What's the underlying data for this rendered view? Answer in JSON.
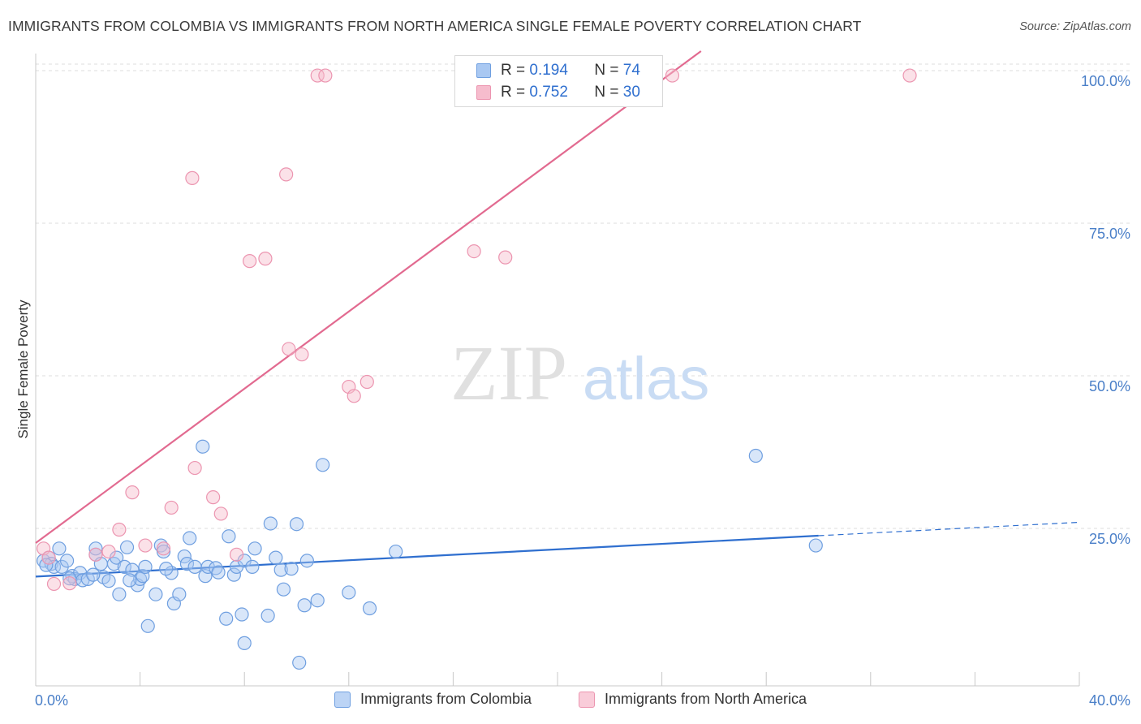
{
  "title": "IMMIGRANTS FROM COLOMBIA VS IMMIGRANTS FROM NORTH AMERICA SINGLE FEMALE POVERTY CORRELATION CHART",
  "source": "Source: ZipAtlas.com",
  "watermark": {
    "zip": "ZIP",
    "atlas": "atlas"
  },
  "legend": {
    "r_label": "R =",
    "n_label": "N =",
    "rows": [
      {
        "r": "0.194",
        "n": "74"
      },
      {
        "r": "0.752",
        "n": "30"
      }
    ]
  },
  "colors": {
    "colombia_fill": "#a9c8f2",
    "colombia_stroke": "#6f9fe0",
    "colombia_line": "#2f6fcf",
    "na_fill": "#f6bccd",
    "na_stroke": "#ec95b0",
    "na_line": "#e26a90",
    "tick_text": "#4a7fc8"
  },
  "chart_data": {
    "type": "scatter",
    "title": "IMMIGRANTS FROM COLOMBIA VS IMMIGRANTS FROM NORTH AMERICA SINGLE FEMALE POVERTY CORRELATION CHART",
    "xlabel": "",
    "ylabel": "Single Female Poverty",
    "xlim": [
      0,
      40
    ],
    "ylim": [
      0,
      102
    ],
    "x_tick_labels": [
      "0.0%",
      "40.0%"
    ],
    "y_ticks": [
      25,
      50,
      75,
      100
    ],
    "y_tick_labels": [
      "25.0%",
      "50.0%",
      "75.0%",
      "100.0%"
    ],
    "grid": true,
    "legend_position": "top-center",
    "series": [
      {
        "name": "Immigrants from Colombia",
        "r": 0.194,
        "n": 74,
        "trend": {
          "x0": 0,
          "y0": 17.9,
          "x1": 30,
          "y1": 24.6,
          "dashed_to_x": 40,
          "dashed_to_y": 26.8
        },
        "points": [
          [
            0.3,
            20.5
          ],
          [
            0.5,
            21
          ],
          [
            0.6,
            20
          ],
          [
            0.7,
            19.5
          ],
          [
            0.9,
            22.5
          ],
          [
            1.0,
            19.5
          ],
          [
            1.2,
            20.5
          ],
          [
            1.4,
            18
          ],
          [
            1.5,
            17.5
          ],
          [
            1.7,
            18.5
          ],
          [
            1.8,
            17.3
          ],
          [
            2.0,
            17.5
          ],
          [
            2.3,
            21.5
          ],
          [
            2.3,
            22.5
          ],
          [
            2.5,
            20
          ],
          [
            2.6,
            17.8
          ],
          [
            2.8,
            17.2
          ],
          [
            3.0,
            20
          ],
          [
            3.1,
            21
          ],
          [
            3.2,
            15
          ],
          [
            3.4,
            19.5
          ],
          [
            3.5,
            22.7
          ],
          [
            3.7,
            19
          ],
          [
            3.9,
            16.5
          ],
          [
            4.0,
            17.5
          ],
          [
            4.1,
            18
          ],
          [
            4.2,
            19.5
          ],
          [
            4.3,
            9.8
          ],
          [
            4.6,
            15
          ],
          [
            4.8,
            23
          ],
          [
            4.9,
            22
          ],
          [
            5.2,
            18.5
          ],
          [
            5.3,
            13.5
          ],
          [
            5.5,
            15
          ],
          [
            5.7,
            21.2
          ],
          [
            5.8,
            20
          ],
          [
            5.9,
            24.2
          ],
          [
            6.1,
            19.5
          ],
          [
            6.5,
            18
          ],
          [
            6.6,
            19.5
          ],
          [
            6.9,
            19.3
          ],
          [
            7.3,
            11
          ],
          [
            7.4,
            24.5
          ],
          [
            7.6,
            18.2
          ],
          [
            7.7,
            19.5
          ],
          [
            7.9,
            11.7
          ],
          [
            8.0,
            20.5
          ],
          [
            8.0,
            7
          ],
          [
            8.3,
            19.5
          ],
          [
            8.4,
            22.5
          ],
          [
            8.9,
            11.5
          ],
          [
            9.0,
            26.6
          ],
          [
            9.2,
            21
          ],
          [
            9.4,
            19
          ],
          [
            9.5,
            15.8
          ],
          [
            9.8,
            19.2
          ],
          [
            10.0,
            26.5
          ],
          [
            10.1,
            3.8
          ],
          [
            10.3,
            13.2
          ],
          [
            10.4,
            20.5
          ],
          [
            10.8,
            14
          ],
          [
            11.0,
            36.2
          ],
          [
            12.0,
            15.3
          ],
          [
            12.8,
            12.7
          ],
          [
            13.8,
            22
          ],
          [
            6.4,
            39.2
          ],
          [
            0.4,
            19.8
          ],
          [
            1.3,
            17.6
          ],
          [
            3.6,
            17.3
          ],
          [
            2.2,
            18.2
          ],
          [
            5.0,
            19.2
          ],
          [
            7.0,
            18.6
          ],
          [
            27.6,
            37.7
          ],
          [
            29.9,
            23
          ]
        ]
      },
      {
        "name": "Immigrants from North America",
        "r": 0.752,
        "n": 30,
        "trend": {
          "x0": 0,
          "y0": 23.4,
          "x1": 25.5,
          "y1": 104
        },
        "points": [
          [
            0.3,
            22.5
          ],
          [
            0.5,
            21
          ],
          [
            0.7,
            16.7
          ],
          [
            1.3,
            16.8
          ],
          [
            2.3,
            21.5
          ],
          [
            2.8,
            22
          ],
          [
            3.2,
            25.6
          ],
          [
            3.7,
            31.7
          ],
          [
            4.2,
            23
          ],
          [
            4.9,
            22.5
          ],
          [
            5.2,
            29.2
          ],
          [
            6.0,
            83.2
          ],
          [
            6.1,
            35.7
          ],
          [
            6.8,
            30.9
          ],
          [
            7.1,
            28.2
          ],
          [
            7.7,
            21.5
          ],
          [
            8.2,
            69.6
          ],
          [
            8.8,
            70
          ],
          [
            9.6,
            83.8
          ],
          [
            9.7,
            55.2
          ],
          [
            10.2,
            54.3
          ],
          [
            10.8,
            100
          ],
          [
            11.1,
            100
          ],
          [
            12.0,
            49
          ],
          [
            12.2,
            47.5
          ],
          [
            12.7,
            49.8
          ],
          [
            16.8,
            71.2
          ],
          [
            18.0,
            70.2
          ],
          [
            24.4,
            100
          ],
          [
            33.5,
            100
          ]
        ]
      }
    ]
  }
}
